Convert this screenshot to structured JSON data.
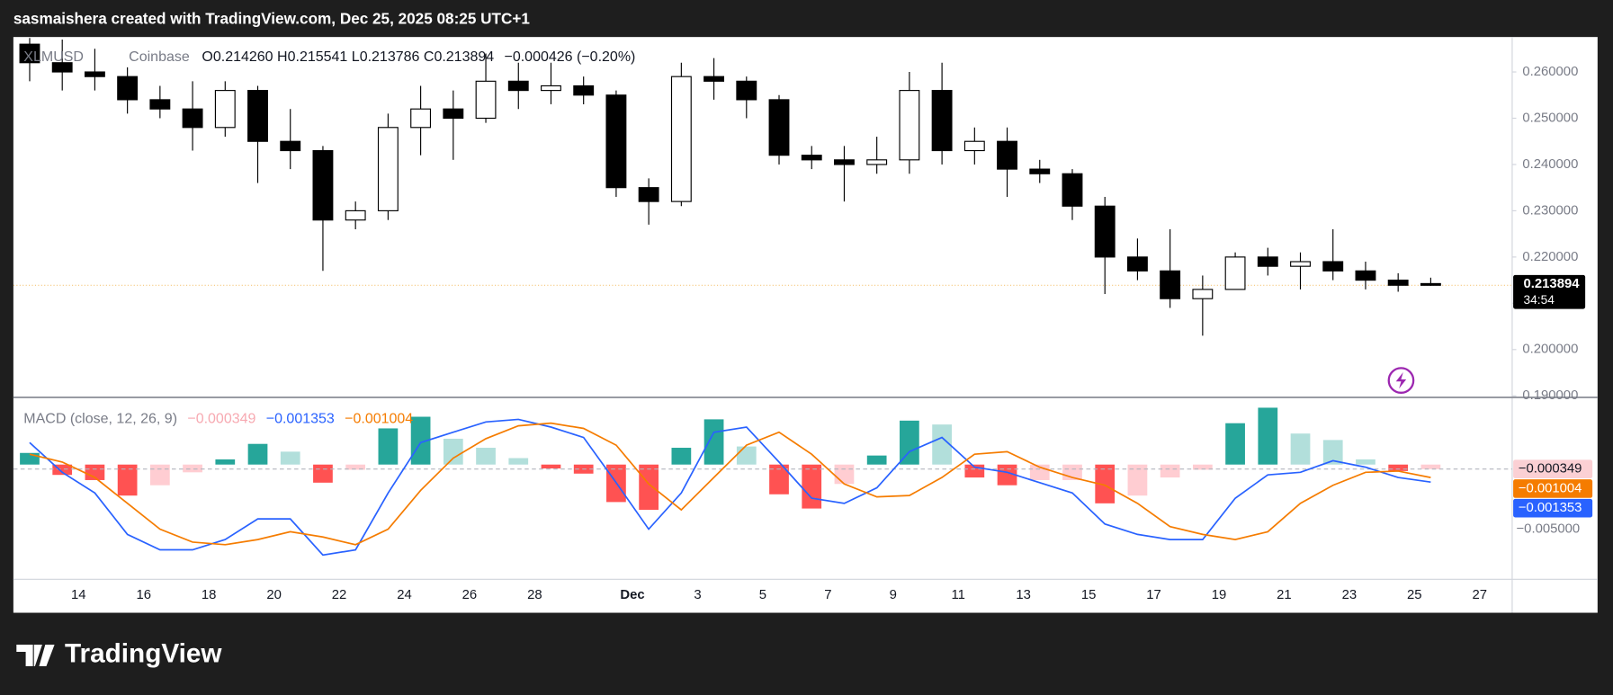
{
  "header": {
    "text": "sasmaishera created with TradingView.com, Dec 25, 2025 08:25 UTC+1"
  },
  "footer": {
    "brand": "TradingView"
  },
  "chart_data": [
    {
      "type": "candlestick",
      "symbol": "XLMUSD",
      "exchange": "Coinbase",
      "legend": {
        "open": {
          "label": "O",
          "value": "0.214260"
        },
        "high": {
          "label": "H",
          "value": "0.215541"
        },
        "low": {
          "label": "L",
          "value": "0.213786"
        },
        "close": {
          "label": "C",
          "value": "0.213894"
        },
        "change": "−0.000426 (−0.20%)"
      },
      "x": [
        "2025-11-12",
        "2025-11-13",
        "2025-11-14",
        "2025-11-15",
        "2025-11-16",
        "2025-11-17",
        "2025-11-18",
        "2025-11-19",
        "2025-11-20",
        "2025-11-21",
        "2025-11-22",
        "2025-11-23",
        "2025-11-24",
        "2025-11-25",
        "2025-11-26",
        "2025-11-27",
        "2025-11-28",
        "2025-11-29",
        "2025-11-30",
        "2025-12-01",
        "2025-12-02",
        "2025-12-03",
        "2025-12-04",
        "2025-12-05",
        "2025-12-06",
        "2025-12-07",
        "2025-12-08",
        "2025-12-09",
        "2025-12-10",
        "2025-12-11",
        "2025-12-12",
        "2025-12-13",
        "2025-12-14",
        "2025-12-15",
        "2025-12-16",
        "2025-12-17",
        "2025-12-18",
        "2025-12-19",
        "2025-12-20",
        "2025-12-21",
        "2025-12-22",
        "2025-12-23",
        "2025-12-24",
        "2025-12-25"
      ],
      "open": [
        0.266,
        0.262,
        0.26,
        0.259,
        0.254,
        0.252,
        0.248,
        0.256,
        0.245,
        0.243,
        0.228,
        0.23,
        0.248,
        0.252,
        0.25,
        0.258,
        0.256,
        0.257,
        0.255,
        0.235,
        0.232,
        0.259,
        0.258,
        0.254,
        0.242,
        0.241,
        0.24,
        0.241,
        0.256,
        0.243,
        0.245,
        0.239,
        0.238,
        0.231,
        0.22,
        0.217,
        0.211,
        0.213,
        0.22,
        0.218,
        0.219,
        0.217,
        0.215,
        0.21426
      ],
      "high": [
        0.268,
        0.267,
        0.265,
        0.261,
        0.257,
        0.258,
        0.258,
        0.257,
        0.252,
        0.244,
        0.232,
        0.251,
        0.257,
        0.256,
        0.264,
        0.262,
        0.262,
        0.259,
        0.256,
        0.237,
        0.262,
        0.263,
        0.259,
        0.255,
        0.244,
        0.244,
        0.246,
        0.26,
        0.262,
        0.248,
        0.248,
        0.241,
        0.239,
        0.233,
        0.224,
        0.226,
        0.216,
        0.221,
        0.222,
        0.221,
        0.226,
        0.219,
        0.2165,
        0.215541
      ],
      "low": [
        0.258,
        0.256,
        0.256,
        0.251,
        0.25,
        0.243,
        0.246,
        0.236,
        0.239,
        0.217,
        0.226,
        0.228,
        0.242,
        0.241,
        0.249,
        0.252,
        0.253,
        0.253,
        0.233,
        0.227,
        0.231,
        0.254,
        0.25,
        0.24,
        0.239,
        0.232,
        0.238,
        0.238,
        0.24,
        0.24,
        0.233,
        0.236,
        0.228,
        0.212,
        0.215,
        0.209,
        0.203,
        0.213,
        0.216,
        0.213,
        0.215,
        0.213,
        0.2125,
        0.213786
      ],
      "close": [
        0.262,
        0.26,
        0.259,
        0.254,
        0.252,
        0.248,
        0.256,
        0.245,
        0.243,
        0.228,
        0.23,
        0.248,
        0.252,
        0.25,
        0.258,
        0.256,
        0.257,
        0.255,
        0.235,
        0.232,
        0.259,
        0.258,
        0.254,
        0.242,
        0.241,
        0.24,
        0.241,
        0.256,
        0.243,
        0.245,
        0.239,
        0.238,
        0.231,
        0.22,
        0.217,
        0.211,
        0.213,
        0.22,
        0.218,
        0.219,
        0.217,
        0.215,
        0.2139,
        0.213894
      ],
      "up_color": "#ffffff",
      "down_color": "#000000",
      "wick_color": "#000000",
      "xlim": [
        "2025-11-12",
        "2025-12-28"
      ],
      "xticks": [
        {
          "value": "2025-11-14",
          "label": "14"
        },
        {
          "value": "2025-11-16",
          "label": "16"
        },
        {
          "value": "2025-11-18",
          "label": "18"
        },
        {
          "value": "2025-11-20",
          "label": "20"
        },
        {
          "value": "2025-11-22",
          "label": "22"
        },
        {
          "value": "2025-11-24",
          "label": "24"
        },
        {
          "value": "2025-11-26",
          "label": "26"
        },
        {
          "value": "2025-11-28",
          "label": "28"
        },
        {
          "value": "2025-12-01",
          "label": "Dec"
        },
        {
          "value": "2025-12-03",
          "label": "3"
        },
        {
          "value": "2025-12-05",
          "label": "5"
        },
        {
          "value": "2025-12-07",
          "label": "7"
        },
        {
          "value": "2025-12-09",
          "label": "9"
        },
        {
          "value": "2025-12-11",
          "label": "11"
        },
        {
          "value": "2025-12-13",
          "label": "13"
        },
        {
          "value": "2025-12-15",
          "label": "15"
        },
        {
          "value": "2025-12-17",
          "label": "17"
        },
        {
          "value": "2025-12-19",
          "label": "19"
        },
        {
          "value": "2025-12-21",
          "label": "21"
        },
        {
          "value": "2025-12-23",
          "label": "23"
        },
        {
          "value": "2025-12-25",
          "label": "25"
        },
        {
          "value": "2025-12-27",
          "label": "27"
        }
      ],
      "ylim": [
        0.18978,
        0.26733
      ],
      "yticks": [
        {
          "value": 0.19,
          "label": "0.190000"
        },
        {
          "value": 0.2,
          "label": "0.200000"
        },
        {
          "value": 0.21,
          "label": "0.210000"
        },
        {
          "value": 0.22,
          "label": "0.220000"
        },
        {
          "value": 0.23,
          "label": "0.230000"
        },
        {
          "value": 0.24,
          "label": "0.240000"
        },
        {
          "value": 0.25,
          "label": "0.250000"
        },
        {
          "value": 0.26,
          "label": "0.260000"
        }
      ],
      "last_price": {
        "value": 0.213894,
        "label": "0.213894",
        "countdown": "34:54"
      },
      "grid": false
    },
    {
      "type": "macd",
      "title": "MACD (close, 12, 26, 9)",
      "x": [
        "2025-11-12",
        "2025-11-13",
        "2025-11-14",
        "2025-11-15",
        "2025-11-16",
        "2025-11-17",
        "2025-11-18",
        "2025-11-19",
        "2025-11-20",
        "2025-11-21",
        "2025-11-22",
        "2025-11-23",
        "2025-11-24",
        "2025-11-25",
        "2025-11-26",
        "2025-11-27",
        "2025-11-28",
        "2025-11-29",
        "2025-11-30",
        "2025-12-01",
        "2025-12-02",
        "2025-12-03",
        "2025-12-04",
        "2025-12-05",
        "2025-12-06",
        "2025-12-07",
        "2025-12-08",
        "2025-12-09",
        "2025-12-10",
        "2025-12-11",
        "2025-12-12",
        "2025-12-13",
        "2025-12-14",
        "2025-12-15",
        "2025-12-16",
        "2025-12-17",
        "2025-12-18",
        "2025-12-19",
        "2025-12-20",
        "2025-12-21",
        "2025-12-22",
        "2025-12-23",
        "2025-12-24",
        "2025-12-25"
      ],
      "series": [
        {
          "kind": "histogram",
          "color": "#f7a9b1",
          "last_label": "−0.000349",
          "colors": {
            "rise_pos": "#26a69a",
            "fall_pos": "#b2dfdb",
            "fall_neg": "#ff5252",
            "rise_neg": "#ffcdd2"
          },
          "values": [
            0.0009,
            -0.0008,
            -0.0012,
            -0.0024,
            -0.0016,
            -0.0006,
            0.0004,
            0.0016,
            0.001,
            -0.0014,
            -0.0004,
            0.0028,
            0.0037,
            0.002,
            0.0013,
            0.0005,
            -0.0003,
            -0.0007,
            -0.0029,
            -0.0035,
            0.0013,
            0.0035,
            0.0014,
            -0.0023,
            -0.0034,
            -0.0015,
            0.0007,
            0.0034,
            0.0031,
            -0.001,
            -0.0016,
            -0.0012,
            -0.0012,
            -0.003,
            -0.0024,
            -0.001,
            -0.0004,
            0.0032,
            0.0044,
            0.0024,
            0.0019,
            0.0004,
            -0.0005,
            -0.000349
          ]
        },
        {
          "kind": "line",
          "color": "#2962ff",
          "last_label": "−0.001353",
          "values": [
            0.0017,
            -0.0006,
            -0.0022,
            -0.0054,
            -0.0066,
            -0.0066,
            -0.0058,
            -0.0042,
            -0.0042,
            -0.007,
            -0.0066,
            -0.0022,
            0.0017,
            0.0025,
            0.0033,
            0.0035,
            0.0029,
            0.0021,
            -0.0014,
            -0.005,
            -0.0022,
            0.0025,
            0.0029,
            0.0002,
            -0.0026,
            -0.003,
            -0.0018,
            0.001,
            0.0021,
            -0.0002,
            -0.0006,
            -0.0014,
            -0.0022,
            -0.0046,
            -0.0054,
            -0.0058,
            -0.0058,
            -0.0026,
            -0.0008,
            -0.0006,
            0.0003,
            -0.0002,
            -0.001,
            -0.001353
          ]
        },
        {
          "kind": "line",
          "color": "#f57c00",
          "last_label": "−0.001004",
          "values": [
            0.0008,
            0.0002,
            -0.001,
            -0.003,
            -0.005,
            -0.006,
            -0.0062,
            -0.0058,
            -0.0052,
            -0.0056,
            -0.0062,
            -0.005,
            -0.002,
            0.0005,
            0.002,
            0.003,
            0.0032,
            0.0028,
            0.0015,
            -0.0015,
            -0.0035,
            -0.001,
            0.0015,
            0.0025,
            0.0008,
            -0.0015,
            -0.0025,
            -0.0024,
            -0.001,
            0.0008,
            0.001,
            -0.0002,
            -0.001,
            -0.0016,
            -0.003,
            -0.0048,
            -0.0054,
            -0.0058,
            -0.0052,
            -0.003,
            -0.0016,
            -0.0006,
            -0.0005,
            -0.001004
          ]
        }
      ],
      "ylim": [
        -0.00884,
        0.00516
      ],
      "yticks": [
        {
          "value": -0.005,
          "label": "−0.005000"
        }
      ]
    }
  ]
}
